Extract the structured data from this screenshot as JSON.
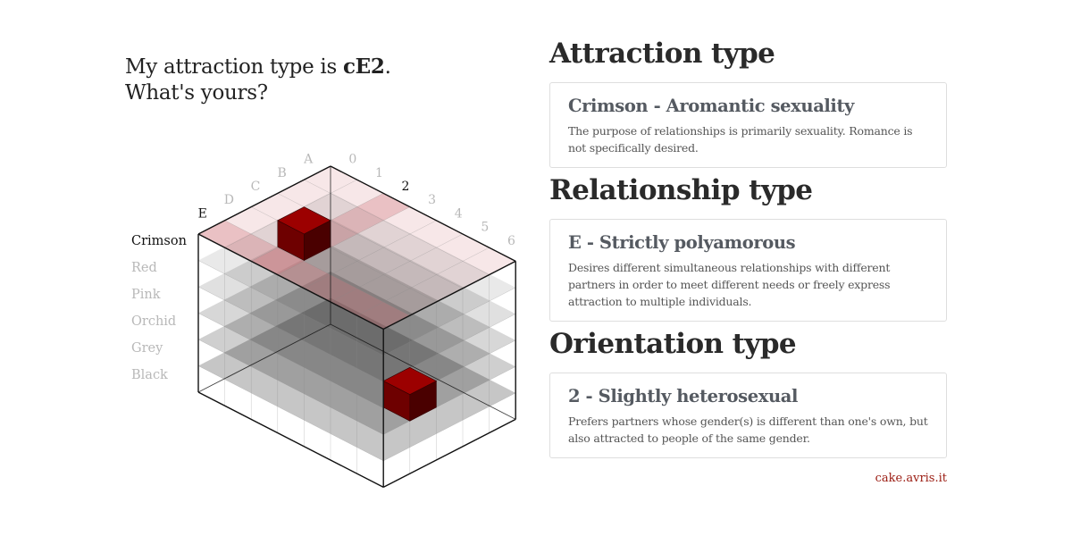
{
  "headline": {
    "line1_prefix": "My attraction type is ",
    "code": "cE2",
    "line1_suffix": ".",
    "line2": "What's yours?"
  },
  "diagram": {
    "relationship_labels": [
      "A",
      "B",
      "C",
      "D",
      "E"
    ],
    "orientation_labels": [
      "0",
      "1",
      "2",
      "3",
      "4",
      "5",
      "6"
    ],
    "colour_labels": [
      "Crimson",
      "Red",
      "Pink",
      "Orchid",
      "Grey",
      "Black"
    ],
    "selected": {
      "colour": "Crimson",
      "relationship": "E",
      "orientation": "2"
    },
    "colors": {
      "selected_top": "#9c0000",
      "selected_left": "#6e0000",
      "selected_right": "#4a0000",
      "highlight_tint": "#d27a82",
      "grid_line": "#888888",
      "edge": "#111111",
      "inactive_label": "#b8b8b8",
      "active_label": "#111111"
    }
  },
  "sections": [
    {
      "heading": "Attraction type",
      "title": "Crimson - Aromantic sexuality",
      "description": "The purpose of relationships is primarily sexuality. Romance is not specifically desired."
    },
    {
      "heading": "Relationship type",
      "title": "E - Strictly polyamorous",
      "description": "Desires different simultaneous relationships with different partners in order to meet different needs or freely express attraction to multiple individuals."
    },
    {
      "heading": "Orientation type",
      "title": "2 - Slightly heterosexual",
      "description": "Prefers partners whose gender(s) is different than one's own, but also attracted to people of the same gender."
    }
  ],
  "footer": {
    "site": "cake.avris.it",
    "site_color": "#9a1a10"
  }
}
